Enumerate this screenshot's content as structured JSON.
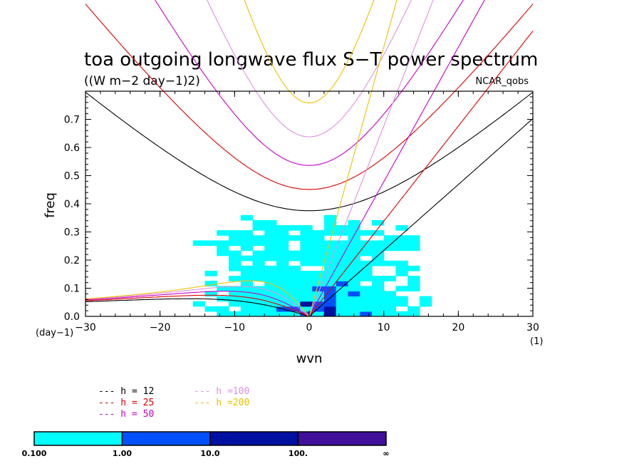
{
  "chart_data": {
    "type": "heatmap",
    "title": "toa outgoing longwave flux S−T power spectrum",
    "subtitle": "((W m−2 day−1)2)",
    "source_label": "NCAR_qobs",
    "xlabel": "wvn",
    "ylabel": "freq",
    "x_unit_label": "(1)",
    "y_unit_label": "(day−1)",
    "xlim": [
      -30,
      30
    ],
    "ylim": [
      0,
      0.8
    ],
    "x_ticks": [
      "−30",
      "−20",
      "−10",
      "0",
      "10",
      "20",
      "30"
    ],
    "y_ticks": [
      "0.0",
      "0.1",
      "0.2",
      "0.3",
      "0.4",
      "0.5",
      "0.6",
      "0.7"
    ],
    "contour_levels": [
      "0.100",
      "1.00",
      "10.0",
      "100.",
      "∞"
    ],
    "contour_colors": [
      "#00ffff",
      "#0050ff",
      "#0010a0",
      "#40109a"
    ],
    "dispersion_curves": [
      {
        "label": "h = 12",
        "color": "#000000",
        "equivalent_depth": 12
      },
      {
        "label": "h = 25",
        "color": "#e00000",
        "equivalent_depth": 25
      },
      {
        "label": "h = 50",
        "color": "#c800c8",
        "equivalent_depth": 50
      },
      {
        "label": "h =100",
        "color": "#e090e0",
        "equivalent_depth": 100
      },
      {
        "label": "h =200",
        "color": "#f0c000",
        "equivalent_depth": 200
      }
    ]
  }
}
